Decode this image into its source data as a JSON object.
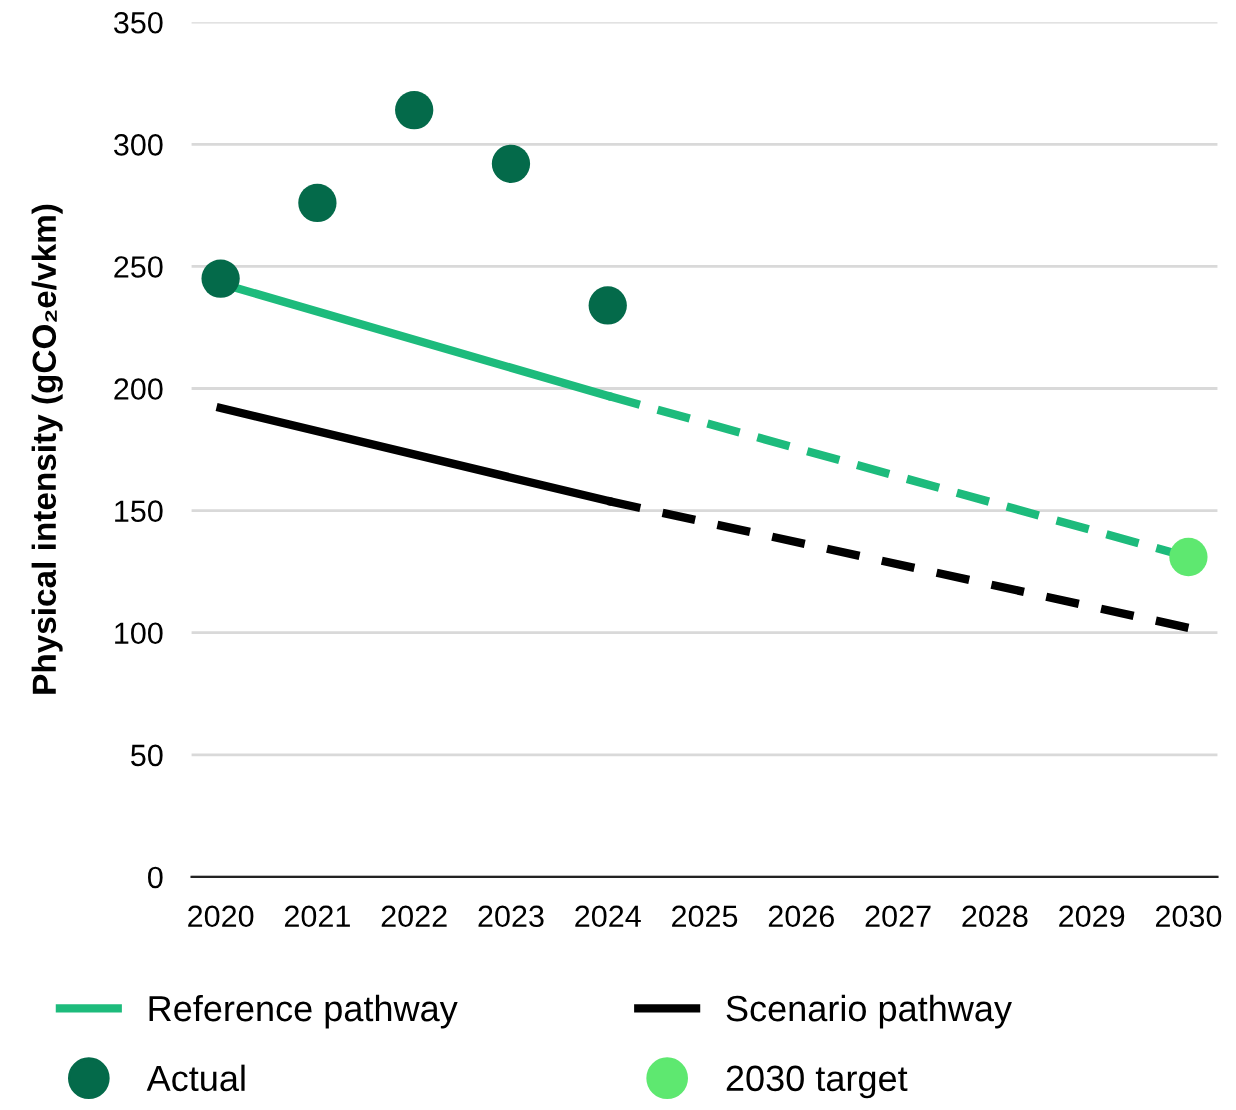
{
  "chart_data": {
    "type": "line",
    "ylabel": "Physical intensity (gCO₂e/vkm)",
    "xlim": [
      2019.7,
      2030.3
    ],
    "xticks": [
      2020,
      2021,
      2022,
      2023,
      2024,
      2025,
      2026,
      2027,
      2028,
      2029,
      2030
    ],
    "ylim": [
      0,
      350
    ],
    "yticks": [
      0,
      50,
      100,
      150,
      200,
      250,
      300,
      350
    ],
    "grid": "y",
    "legend": "bottom",
    "series": [
      {
        "name": "Reference pathway",
        "color": "#1dbb7c",
        "line_style": "solid",
        "x": [
          2020,
          2024
        ],
        "values": [
          243,
          197
        ]
      },
      {
        "color": "#1dbb7c",
        "line_style": "dashed",
        "x": [
          2024,
          2030
        ],
        "values": [
          197,
          131
        ]
      },
      {
        "name": "Scenario pathway",
        "color": "#000000",
        "line_style": "solid",
        "x": [
          2020,
          2024
        ],
        "values": [
          192,
          154
        ]
      },
      {
        "color": "#000000",
        "line_style": "dashed",
        "x": [
          2024,
          2030
        ],
        "values": [
          154,
          102
        ]
      },
      {
        "name": "Actual",
        "type": "scatter",
        "marker": "circle",
        "color": "#046a4a",
        "x": [
          2020,
          2021,
          2022,
          2023,
          2024
        ],
        "values": [
          245,
          276,
          314,
          292,
          234
        ]
      },
      {
        "name": "2030 target",
        "type": "scatter",
        "marker": "circle",
        "color": "#5ee870",
        "x": [
          2030
        ],
        "values": [
          131
        ]
      }
    ]
  }
}
